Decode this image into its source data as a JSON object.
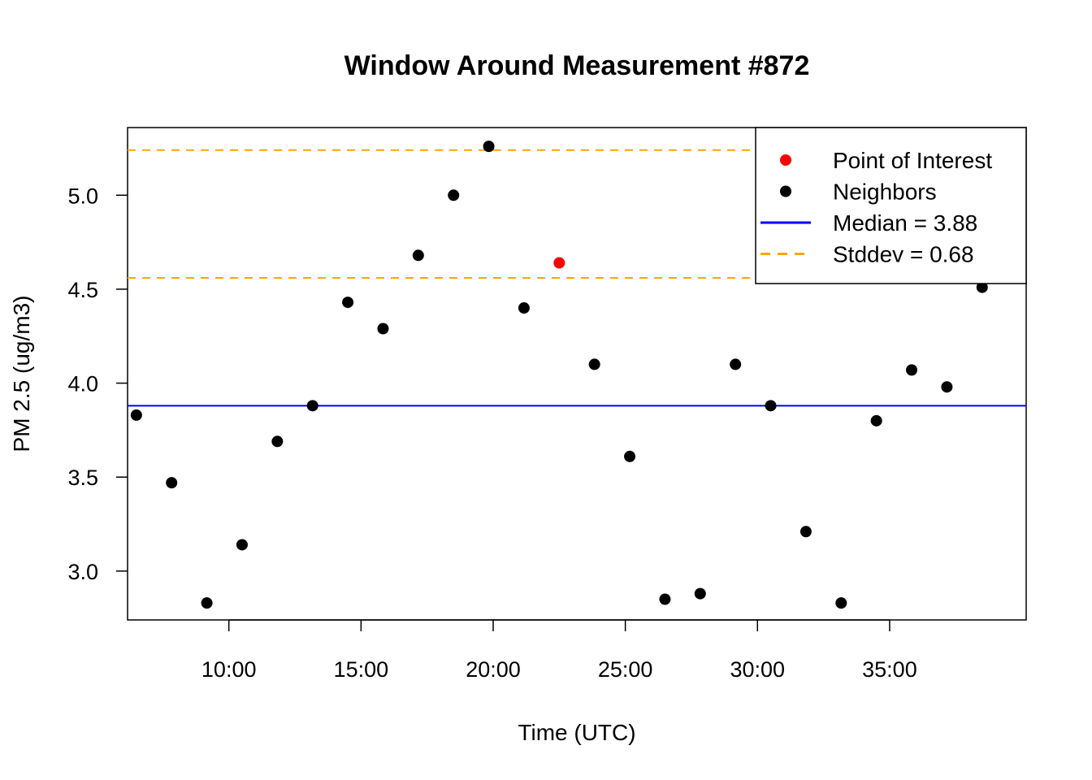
{
  "chart_data": {
    "type": "scatter",
    "title": "Window Around Measurement #872",
    "xlabel": "Time (UTC)",
    "ylabel": "PM 2.5 (ug/m3)",
    "x_unit": "minutes",
    "xlim": [
      "06:10",
      "40:10"
    ],
    "ylim": [
      2.74,
      5.36
    ],
    "x_ticks": [
      "10:00",
      "15:00",
      "20:00",
      "25:00",
      "30:00",
      "35:00"
    ],
    "y_ticks": [
      "3.0",
      "3.5",
      "4.0",
      "4.5",
      "5.0"
    ],
    "grid": false,
    "legend_position": "top-right",
    "series": [
      {
        "name": "Point of Interest",
        "color": "#ff0000",
        "points": [
          {
            "x": "22:30",
            "y": 4.64
          }
        ]
      },
      {
        "name": "Neighbors",
        "color": "#000000",
        "points": [
          {
            "x": "06:30",
            "y": 3.83
          },
          {
            "x": "07:50",
            "y": 3.47
          },
          {
            "x": "09:10",
            "y": 2.83
          },
          {
            "x": "10:30",
            "y": 3.14
          },
          {
            "x": "11:50",
            "y": 3.69
          },
          {
            "x": "13:10",
            "y": 3.88
          },
          {
            "x": "14:30",
            "y": 4.43
          },
          {
            "x": "15:50",
            "y": 4.29
          },
          {
            "x": "17:10",
            "y": 4.68
          },
          {
            "x": "18:30",
            "y": 5.0
          },
          {
            "x": "19:50",
            "y": 5.26
          },
          {
            "x": "21:10",
            "y": 4.4
          },
          {
            "x": "23:50",
            "y": 4.1
          },
          {
            "x": "25:10",
            "y": 3.61
          },
          {
            "x": "26:30",
            "y": 2.85
          },
          {
            "x": "27:50",
            "y": 2.88
          },
          {
            "x": "29:10",
            "y": 4.1
          },
          {
            "x": "30:30",
            "y": 3.88
          },
          {
            "x": "31:50",
            "y": 3.21
          },
          {
            "x": "33:10",
            "y": 2.83
          },
          {
            "x": "34:30",
            "y": 3.8
          },
          {
            "x": "35:50",
            "y": 4.07
          },
          {
            "x": "37:10",
            "y": 3.98
          },
          {
            "x": "38:30",
            "y": 4.51
          }
        ]
      }
    ],
    "reference_lines": [
      {
        "name": "Median = 3.88",
        "value": 3.88,
        "color": "#0000ff",
        "style": "solid"
      },
      {
        "name": "Stddev = 0.68",
        "value": 4.56,
        "color": "#ffa500",
        "style": "dashed"
      },
      {
        "name": "Stddev = 0.68",
        "value": 5.24,
        "color": "#ffa500",
        "style": "dashed"
      }
    ],
    "legend": [
      {
        "label": "Point of Interest",
        "symbol": "point",
        "color": "#ff0000"
      },
      {
        "label": "Neighbors",
        "symbol": "point",
        "color": "#000000"
      },
      {
        "label": "Median = 3.88",
        "symbol": "line",
        "color": "#0000ff"
      },
      {
        "label": "Stddev = 0.68",
        "symbol": "dashed-line",
        "color": "#ffa500"
      }
    ]
  }
}
